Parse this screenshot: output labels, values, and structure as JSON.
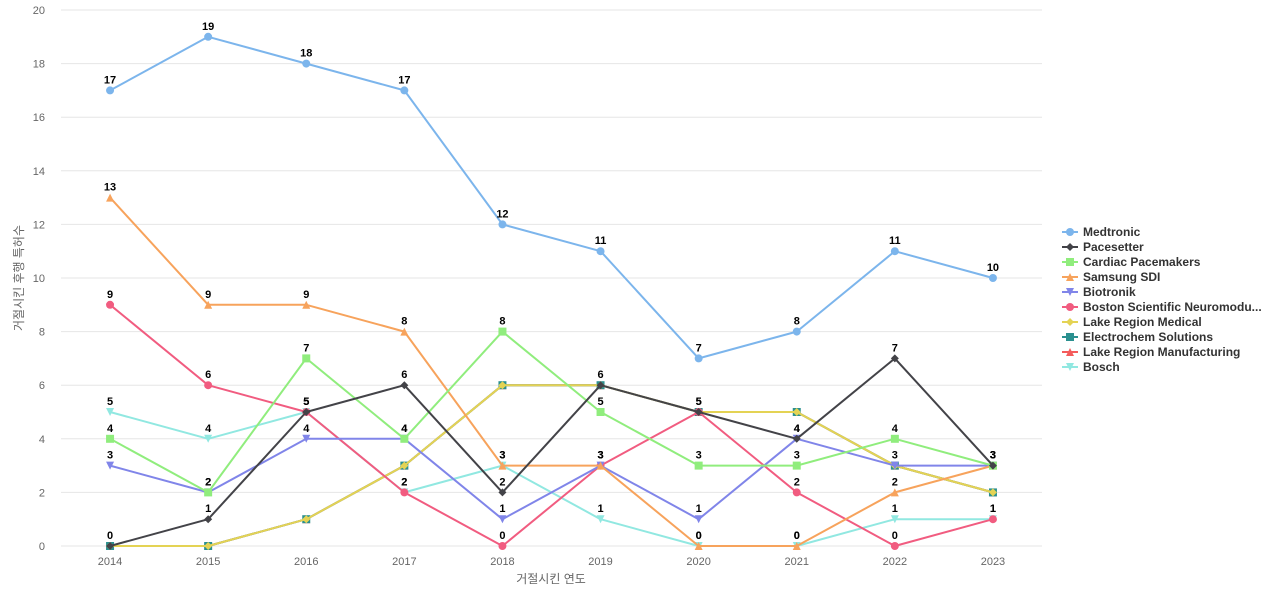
{
  "chart_data": {
    "type": "line",
    "title": "",
    "xlabel": "거절시킨 연도",
    "ylabel": "거절시킨 후행 특허수",
    "ylim": [
      0,
      20
    ],
    "y_ticks": [
      "0",
      "2",
      "4",
      "6",
      "8",
      "10",
      "12",
      "14",
      "16",
      "18",
      "20"
    ],
    "categories": [
      "2014",
      "2015",
      "2016",
      "2017",
      "2018",
      "2019",
      "2020",
      "2021",
      "2022",
      "2023"
    ],
    "grid": true,
    "legend_position": "right",
    "series": [
      {
        "name": "Medtronic",
        "color": "#7cb5ec",
        "marker": "circle",
        "values": [
          17,
          19,
          18,
          17,
          12,
          11,
          7,
          8,
          11,
          10
        ],
        "labels": [
          17,
          19,
          18,
          17,
          12,
          11,
          7,
          8,
          11,
          10
        ]
      },
      {
        "name": "Pacesetter",
        "color": "#434348",
        "marker": "diamond",
        "values": [
          0,
          1,
          5,
          6,
          2,
          6,
          5,
          4,
          7,
          3
        ],
        "labels": [
          0,
          1,
          5,
          6,
          2,
          6,
          5,
          4,
          7,
          3
        ]
      },
      {
        "name": "Cardiac Pacemakers",
        "color": "#90ed7d",
        "marker": "square",
        "values": [
          4,
          2,
          7,
          4,
          8,
          5,
          3,
          3,
          4,
          3
        ],
        "labels": [
          4,
          2,
          7,
          4,
          8,
          5,
          3,
          3,
          4,
          3
        ]
      },
      {
        "name": "Samsung SDI",
        "color": "#f7a35c",
        "marker": "triangle",
        "values": [
          13,
          9,
          9,
          8,
          3,
          3,
          0,
          0,
          2,
          3
        ],
        "labels": [
          13,
          9,
          9,
          8,
          3,
          3,
          0,
          0,
          2,
          3
        ]
      },
      {
        "name": "Biotronik",
        "color": "#8085e9",
        "marker": "triangle-down",
        "values": [
          3,
          2,
          4,
          4,
          1,
          3,
          1,
          4,
          3,
          3
        ],
        "labels": [
          3,
          2,
          4,
          4,
          1,
          3,
          1,
          4,
          3,
          3
        ]
      },
      {
        "name": "Boston Scientific Neuromodu...",
        "color": "#f15c80",
        "marker": "circle",
        "values": [
          9,
          6,
          5,
          2,
          0,
          3,
          5,
          2,
          0,
          1
        ],
        "labels": [
          9,
          6,
          5,
          2,
          0,
          3,
          5,
          2,
          0,
          1
        ]
      },
      {
        "name": "Lake Region Medical",
        "color": "#e4d354",
        "marker": "diamond",
        "values": [
          0,
          0,
          1,
          3,
          6,
          6,
          5,
          5,
          3,
          2
        ],
        "labels": [
          null,
          null,
          null,
          null,
          null,
          null,
          null,
          null,
          null,
          null
        ]
      },
      {
        "name": "Electrochem Solutions",
        "color": "#2b908f",
        "marker": "square",
        "values": [
          0,
          0,
          1,
          3,
          6,
          6,
          5,
          5,
          3,
          2
        ],
        "labels": [
          null,
          null,
          null,
          null,
          null,
          null,
          null,
          null,
          null,
          null
        ]
      },
      {
        "name": "Lake Region Manufacturing",
        "color": "#f45b5b",
        "marker": "triangle",
        "values": [
          0,
          0,
          1,
          3,
          6,
          6,
          5,
          5,
          3,
          2
        ],
        "labels": [
          null,
          null,
          null,
          null,
          null,
          null,
          null,
          null,
          null,
          null
        ]
      },
      {
        "name": "Bosch",
        "color": "#91e8e1",
        "marker": "triangle-down",
        "values": [
          5,
          4,
          5,
          2,
          3,
          1,
          0,
          0,
          1,
          1
        ],
        "labels": [
          5,
          4,
          5,
          2,
          3,
          1,
          0,
          0,
          1,
          1
        ]
      }
    ]
  }
}
